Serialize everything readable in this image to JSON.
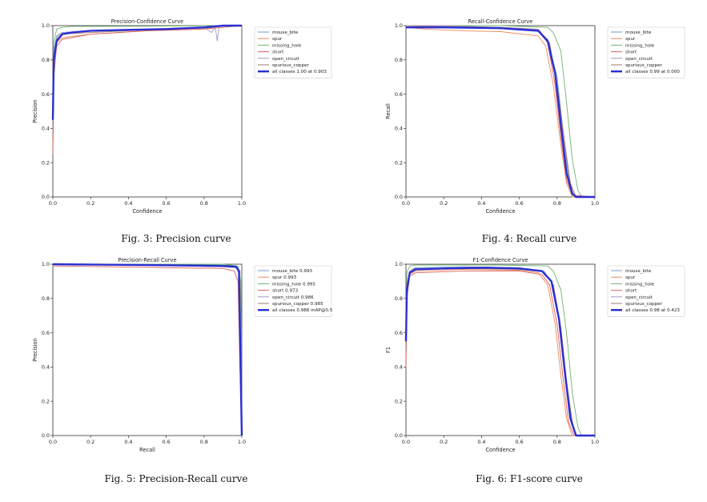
{
  "colors": {
    "mouse_bite": "#6f9ec8",
    "spur": "#ee8a5c",
    "missing_hole": "#6fb56f",
    "short": "#d9625a",
    "open_circuit": "#a895c9",
    "spurious_copper": "#9c7a72",
    "all_classes": "#2b2fd1"
  },
  "captions": [
    "Fig. 3: Precision curve",
    "Fig. 4: Recall curve",
    "Fig. 5: Precision-Recall curve",
    "Fig. 6: F1-score curve"
  ],
  "chart_data": [
    {
      "type": "line",
      "title": "Precision-Confidence Curve",
      "xlabel": "Confidence",
      "ylabel": "Precision",
      "xlim": [
        0,
        1
      ],
      "ylim": [
        0,
        1
      ],
      "xticks": [
        "0.0",
        "0.2",
        "0.4",
        "0.6",
        "0.8",
        "1.0"
      ],
      "yticks": [
        "0.0",
        "0.2",
        "0.4",
        "0.6",
        "0.8",
        "1.0"
      ],
      "legend": "top-right",
      "series": [
        {
          "name": "mouse_bite",
          "color_key": "mouse_bite",
          "x": [
            0,
            0.005,
            0.02,
            0.05,
            0.2,
            0.5,
            0.8,
            0.9,
            0.95,
            1
          ],
          "y": [
            0.35,
            0.8,
            0.93,
            0.96,
            0.97,
            0.98,
            0.99,
            1,
            1,
            1
          ]
        },
        {
          "name": "spur",
          "color_key": "spur",
          "x": [
            0,
            0.005,
            0.02,
            0.05,
            0.2,
            0.5,
            0.8,
            0.85,
            0.9,
            1
          ],
          "y": [
            0.3,
            0.75,
            0.9,
            0.93,
            0.95,
            0.97,
            0.98,
            0.99,
            1,
            1
          ]
        },
        {
          "name": "missing_hole",
          "color_key": "missing_hole",
          "x": [
            0,
            0.005,
            0.02,
            0.05,
            0.1,
            0.5,
            0.9,
            1
          ],
          "y": [
            0.6,
            0.9,
            0.98,
            0.99,
            0.995,
            0.997,
            1,
            1
          ]
        },
        {
          "name": "short",
          "color_key": "short",
          "x": [
            0,
            0.005,
            0.02,
            0.05,
            0.2,
            0.5,
            0.8,
            0.9,
            1
          ],
          "y": [
            0.25,
            0.7,
            0.88,
            0.92,
            0.95,
            0.97,
            0.98,
            0.99,
            1
          ]
        },
        {
          "name": "open_circuit",
          "color_key": "open_circuit",
          "x": [
            0,
            0.005,
            0.02,
            0.05,
            0.2,
            0.5,
            0.8,
            0.84,
            0.86,
            0.87,
            0.88,
            1
          ],
          "y": [
            0.4,
            0.85,
            0.94,
            0.96,
            0.97,
            0.98,
            0.99,
            0.96,
            0.99,
            0.91,
            1,
            1
          ]
        },
        {
          "name": "spurious_copper",
          "color_key": "spurious_copper",
          "x": [
            0,
            0.005,
            0.02,
            0.05,
            0.2,
            0.5,
            0.8,
            0.9,
            1
          ],
          "y": [
            0.35,
            0.8,
            0.92,
            0.95,
            0.96,
            0.975,
            0.985,
            1,
            1
          ]
        },
        {
          "name": "all classes 1.00 at 0.903",
          "color_key": "all_classes",
          "bold": true,
          "x": [
            0,
            0.005,
            0.02,
            0.05,
            0.1,
            0.2,
            0.4,
            0.6,
            0.8,
            0.903,
            1
          ],
          "y": [
            0.45,
            0.8,
            0.91,
            0.95,
            0.96,
            0.97,
            0.975,
            0.98,
            0.99,
            1,
            1
          ]
        }
      ]
    },
    {
      "type": "line",
      "title": "Recall-Confidence Curve",
      "xlabel": "Confidence",
      "ylabel": "Recall",
      "xlim": [
        0,
        1
      ],
      "ylim": [
        0,
        1
      ],
      "xticks": [
        "0.0",
        "0.2",
        "0.4",
        "0.6",
        "0.8",
        "1.0"
      ],
      "yticks": [
        "0.0",
        "0.2",
        "0.4",
        "0.6",
        "0.8",
        "1.0"
      ],
      "legend": "top-right",
      "series": [
        {
          "name": "mouse_bite",
          "color_key": "mouse_bite",
          "x": [
            0,
            0.2,
            0.5,
            0.7,
            0.75,
            0.8,
            0.83,
            0.86,
            0.88,
            0.9,
            1
          ],
          "y": [
            1,
            0.995,
            0.99,
            0.97,
            0.92,
            0.7,
            0.4,
            0.12,
            0.03,
            0,
            0
          ]
        },
        {
          "name": "spur",
          "color_key": "spur",
          "x": [
            0,
            0.1,
            0.3,
            0.5,
            0.7,
            0.74,
            0.78,
            0.82,
            0.85,
            0.88,
            1
          ],
          "y": [
            0.99,
            0.98,
            0.97,
            0.965,
            0.94,
            0.88,
            0.65,
            0.3,
            0.08,
            0,
            0
          ]
        },
        {
          "name": "missing_hole",
          "color_key": "missing_hole",
          "x": [
            0,
            0.5,
            0.75,
            0.78,
            0.82,
            0.85,
            0.88,
            0.91,
            0.93,
            1
          ],
          "y": [
            1,
            1,
            0.99,
            0.96,
            0.85,
            0.55,
            0.22,
            0.04,
            0,
            0
          ]
        },
        {
          "name": "short",
          "color_key": "short",
          "x": [
            0,
            0.2,
            0.5,
            0.7,
            0.75,
            0.79,
            0.82,
            0.85,
            0.88,
            1
          ],
          "y": [
            0.99,
            0.99,
            0.985,
            0.97,
            0.9,
            0.65,
            0.35,
            0.1,
            0.01,
            0
          ]
        },
        {
          "name": "open_circuit",
          "color_key": "open_circuit",
          "x": [
            0,
            0.2,
            0.5,
            0.7,
            0.76,
            0.8,
            0.84,
            0.87,
            0.9,
            1
          ],
          "y": [
            1,
            1,
            0.99,
            0.98,
            0.9,
            0.65,
            0.3,
            0.08,
            0,
            0
          ]
        },
        {
          "name": "spurious_copper",
          "color_key": "spurious_copper",
          "x": [
            0,
            0.2,
            0.5,
            0.7,
            0.76,
            0.8,
            0.84,
            0.87,
            0.9,
            1
          ],
          "y": [
            1,
            0.995,
            0.99,
            0.975,
            0.9,
            0.65,
            0.32,
            0.08,
            0,
            0
          ]
        },
        {
          "name": "all classes 0.99 at 0.000",
          "color_key": "all_classes",
          "bold": true,
          "x": [
            0,
            0.2,
            0.5,
            0.7,
            0.75,
            0.79,
            0.82,
            0.85,
            0.88,
            0.9,
            1
          ],
          "y": [
            0.99,
            0.99,
            0.985,
            0.97,
            0.91,
            0.72,
            0.42,
            0.14,
            0.02,
            0,
            0
          ]
        }
      ]
    },
    {
      "type": "line",
      "title": "Precision-Recall Curve",
      "xlabel": "Recall",
      "ylabel": "Precision",
      "xlim": [
        0,
        1
      ],
      "ylim": [
        0,
        1
      ],
      "xticks": [
        "0.0",
        "0.2",
        "0.4",
        "0.6",
        "0.8",
        "1.0"
      ],
      "yticks": [
        "0.0",
        "0.2",
        "0.4",
        "0.6",
        "0.8",
        "1.0"
      ],
      "legend": "top-right",
      "series": [
        {
          "name": "mouse_bite 0.993",
          "color_key": "mouse_bite",
          "x": [
            0,
            0.5,
            0.9,
            0.97,
            0.99,
            0.995,
            1
          ],
          "y": [
            1,
            1,
            0.995,
            0.99,
            0.96,
            0.5,
            0
          ]
        },
        {
          "name": "spur 0.993",
          "color_key": "spur",
          "x": [
            0,
            0.5,
            0.9,
            0.97,
            0.99,
            0.995,
            1
          ],
          "y": [
            1,
            0.995,
            0.99,
            0.985,
            0.95,
            0.4,
            0
          ]
        },
        {
          "name": "missing_hole 0.995",
          "color_key": "missing_hole",
          "x": [
            0,
            0.5,
            0.9,
            0.98,
            0.995,
            1
          ],
          "y": [
            1,
            1,
            1,
            0.99,
            0.9,
            0
          ]
        },
        {
          "name": "short 0.973",
          "color_key": "short",
          "x": [
            0,
            0.3,
            0.6,
            0.9,
            0.96,
            0.98,
            0.99,
            1
          ],
          "y": [
            0.99,
            0.985,
            0.98,
            0.975,
            0.96,
            0.9,
            0.4,
            0
          ]
        },
        {
          "name": "open_circuit 0.986",
          "color_key": "open_circuit",
          "x": [
            0,
            0.5,
            0.9,
            0.97,
            0.985,
            0.99,
            1
          ],
          "y": [
            1,
            0.995,
            0.99,
            0.985,
            0.95,
            0.5,
            0
          ]
        },
        {
          "name": "spurious_copper 0.985",
          "color_key": "spurious_copper",
          "x": [
            0,
            0.5,
            0.9,
            0.97,
            0.985,
            0.99,
            1
          ],
          "y": [
            1,
            0.995,
            0.985,
            0.98,
            0.95,
            0.45,
            0
          ]
        },
        {
          "name": "all classes 0.988 mAP@0.5",
          "color_key": "all_classes",
          "bold": true,
          "x": [
            0,
            0.5,
            0.9,
            0.97,
            0.985,
            0.992,
            1
          ],
          "y": [
            1,
            0.995,
            0.99,
            0.985,
            0.96,
            0.5,
            0
          ]
        }
      ]
    },
    {
      "type": "line",
      "title": "F1-Confidence Curve",
      "xlabel": "Confidence",
      "ylabel": "F1",
      "xlim": [
        0,
        1
      ],
      "ylim": [
        0,
        1
      ],
      "xticks": [
        "0.0",
        "0.2",
        "0.4",
        "0.6",
        "0.8",
        "1.0"
      ],
      "yticks": [
        "0.0",
        "0.2",
        "0.4",
        "0.6",
        "0.8",
        "1.0"
      ],
      "legend": "top-right",
      "series": [
        {
          "name": "mouse_bite",
          "color_key": "mouse_bite",
          "x": [
            0,
            0.005,
            0.02,
            0.05,
            0.3,
            0.6,
            0.72,
            0.77,
            0.81,
            0.84,
            0.87,
            0.9,
            1
          ],
          "y": [
            0.5,
            0.85,
            0.96,
            0.98,
            0.985,
            0.98,
            0.96,
            0.9,
            0.7,
            0.4,
            0.12,
            0,
            0
          ]
        },
        {
          "name": "spur",
          "color_key": "spur",
          "x": [
            0,
            0.005,
            0.02,
            0.05,
            0.3,
            0.6,
            0.7,
            0.75,
            0.79,
            0.82,
            0.85,
            0.88,
            1
          ],
          "y": [
            0.45,
            0.82,
            0.94,
            0.96,
            0.97,
            0.965,
            0.95,
            0.88,
            0.65,
            0.35,
            0.1,
            0,
            0
          ]
        },
        {
          "name": "missing_hole",
          "color_key": "missing_hole",
          "x": [
            0,
            0.005,
            0.02,
            0.05,
            0.5,
            0.75,
            0.78,
            0.82,
            0.85,
            0.88,
            0.91,
            0.93,
            1
          ],
          "y": [
            0.75,
            0.95,
            0.99,
            0.995,
            0.995,
            0.99,
            0.96,
            0.85,
            0.6,
            0.25,
            0.05,
            0,
            0
          ]
        },
        {
          "name": "short",
          "color_key": "short",
          "x": [
            0,
            0.005,
            0.02,
            0.05,
            0.3,
            0.6,
            0.72,
            0.76,
            0.8,
            0.83,
            0.86,
            0.89,
            1
          ],
          "y": [
            0.4,
            0.8,
            0.93,
            0.95,
            0.96,
            0.96,
            0.94,
            0.88,
            0.65,
            0.35,
            0.08,
            0,
            0
          ]
        },
        {
          "name": "open_circuit",
          "color_key": "open_circuit",
          "x": [
            0,
            0.005,
            0.02,
            0.05,
            0.3,
            0.6,
            0.73,
            0.78,
            0.82,
            0.85,
            0.88,
            0.9,
            1
          ],
          "y": [
            0.55,
            0.88,
            0.96,
            0.975,
            0.98,
            0.975,
            0.96,
            0.88,
            0.62,
            0.3,
            0.08,
            0,
            0
          ]
        },
        {
          "name": "spurious_copper",
          "color_key": "spurious_copper",
          "x": [
            0,
            0.005,
            0.02,
            0.05,
            0.3,
            0.6,
            0.73,
            0.78,
            0.82,
            0.85,
            0.88,
            0.9,
            1
          ],
          "y": [
            0.5,
            0.86,
            0.95,
            0.97,
            0.975,
            0.97,
            0.955,
            0.88,
            0.63,
            0.32,
            0.08,
            0,
            0
          ]
        },
        {
          "name": "all classes 0.98 at 0.423",
          "color_key": "all_classes",
          "bold": true,
          "x": [
            0,
            0.005,
            0.02,
            0.05,
            0.2,
            0.423,
            0.6,
            0.72,
            0.77,
            0.81,
            0.84,
            0.87,
            0.9,
            1
          ],
          "y": [
            0.55,
            0.85,
            0.95,
            0.97,
            0.975,
            0.98,
            0.975,
            0.96,
            0.9,
            0.68,
            0.38,
            0.1,
            0,
            0
          ]
        }
      ]
    }
  ]
}
